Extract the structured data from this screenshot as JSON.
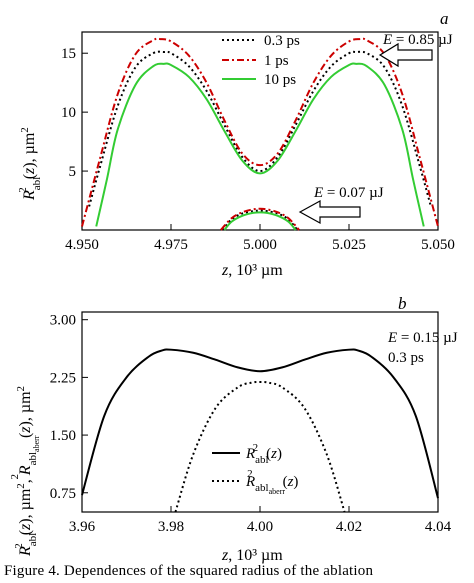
{
  "chart_data": [
    {
      "panel": "a",
      "type": "line",
      "xlabel_prefix": "z",
      "xlabel_units": "10³ µm",
      "ylabel_text": "R²abl(z), µm²",
      "xlim": [
        4.95,
        5.05
      ],
      "ylim": [
        0,
        16.8
      ],
      "x_ticks": [
        "4.950",
        "4.975",
        "5.000",
        "5.025",
        "5.050"
      ],
      "y_ticks": [
        "5",
        "10",
        "15"
      ],
      "series": [
        {
          "name": "0.3 ps",
          "color": "#000000",
          "style": "dotted",
          "x": [
            4.952,
            4.955,
            4.96,
            4.965,
            4.97,
            4.973,
            4.975,
            4.98,
            4.985,
            4.99,
            4.995,
            5.0,
            5.005,
            5.01,
            5.015,
            5.02,
            5.025,
            5.027,
            5.03,
            5.035,
            5.04,
            5.045,
            5.048
          ],
          "y": [
            2.0,
            5.3,
            10.5,
            13.8,
            15.0,
            15.1,
            15.0,
            13.9,
            11.8,
            8.9,
            6.2,
            5.0,
            6.2,
            8.9,
            11.8,
            13.9,
            15.0,
            15.1,
            15.0,
            13.8,
            10.5,
            5.3,
            2.0
          ]
        },
        {
          "name": "1 ps",
          "color": "#cc0000",
          "style": "dashdot",
          "x": [
            4.95,
            4.955,
            4.96,
            4.965,
            4.97,
            4.972,
            4.975,
            4.98,
            4.985,
            4.99,
            4.995,
            5.0,
            5.005,
            5.01,
            5.015,
            5.02,
            5.025,
            5.028,
            5.03,
            5.035,
            5.04,
            5.045,
            5.05
          ],
          "y": [
            0.3,
            6.0,
            11.5,
            14.9,
            16.1,
            16.2,
            16.0,
            14.8,
            12.5,
            9.3,
            6.5,
            5.5,
            6.5,
            9.3,
            12.5,
            14.8,
            16.0,
            16.2,
            16.1,
            14.9,
            11.5,
            6.0,
            0.3
          ]
        },
        {
          "name": "10 ps",
          "color": "#33cc33",
          "style": "solid",
          "x": [
            4.954,
            4.957,
            4.96,
            4.965,
            4.97,
            4.973,
            4.975,
            4.98,
            4.985,
            4.99,
            4.995,
            5.0,
            5.005,
            5.01,
            5.015,
            5.02,
            5.025,
            5.027,
            5.03,
            5.035,
            5.04,
            5.043,
            5.046
          ],
          "y": [
            0.3,
            4.3,
            8.5,
            12.3,
            13.9,
            14.1,
            14.0,
            13.0,
            11.1,
            8.4,
            5.9,
            4.8,
            5.9,
            8.4,
            11.1,
            13.0,
            14.0,
            14.1,
            13.9,
            12.3,
            8.5,
            4.3,
            0.3
          ]
        },
        {
          "name": "",
          "color": "#000000",
          "style": "dotted",
          "x": [
            4.9895,
            4.992,
            4.995,
            4.998,
            5.0,
            5.002,
            5.005,
            5.008,
            5.0105
          ],
          "y": [
            0.0,
            0.9,
            1.4,
            1.6,
            1.65,
            1.6,
            1.4,
            0.9,
            0.0
          ]
        },
        {
          "name": "",
          "color": "#cc0000",
          "style": "dashdot",
          "x": [
            4.989,
            4.992,
            4.995,
            4.998,
            5.0,
            5.002,
            5.005,
            5.008,
            5.011
          ],
          "y": [
            0.0,
            1.0,
            1.5,
            1.75,
            1.8,
            1.75,
            1.5,
            1.0,
            0.0
          ]
        },
        {
          "name": "",
          "color": "#33cc33",
          "style": "solid",
          "x": [
            4.99,
            4.992,
            4.995,
            4.998,
            5.0,
            5.002,
            5.005,
            5.008,
            5.01
          ],
          "y": [
            0.0,
            0.7,
            1.2,
            1.45,
            1.5,
            1.45,
            1.2,
            0.7,
            0.0
          ]
        }
      ],
      "annotations": [
        {
          "prefix": "E",
          "text": " = 0.85 µJ"
        },
        {
          "prefix": "E",
          "text": " = 0.07 µJ"
        }
      ],
      "grid": false,
      "legend": "top-center"
    },
    {
      "panel": "b",
      "type": "line",
      "xlabel_prefix": "z",
      "xlabel_units": "10³ µm",
      "ylabel_text": "R²abl(z), µm², R²abl_aberr(z), µm²",
      "xlim": [
        3.96,
        4.04
      ],
      "ylim": [
        0.5,
        3.1
      ],
      "x_ticks": [
        "3.96",
        "3.98",
        "4.00",
        "4.02",
        "4.04"
      ],
      "y_ticks": [
        "0.75",
        "1.50",
        "2.25",
        "3.00"
      ],
      "series": [
        {
          "name": "R²abl(z)",
          "color": "#000000",
          "style": "solid",
          "x": [
            3.96,
            3.965,
            3.97,
            3.975,
            3.978,
            3.98,
            3.985,
            3.99,
            3.995,
            4.0,
            4.005,
            4.01,
            4.015,
            4.02,
            4.022,
            4.025,
            4.03,
            4.035,
            4.04
          ],
          "y": [
            0.72,
            1.75,
            2.25,
            2.52,
            2.6,
            2.61,
            2.57,
            2.48,
            2.38,
            2.33,
            2.38,
            2.48,
            2.57,
            2.61,
            2.6,
            2.52,
            2.25,
            1.75,
            0.68
          ]
        },
        {
          "name": "R²abl_aberr(z)",
          "color": "#000000",
          "style": "dotted",
          "x": [
            3.981,
            3.985,
            3.99,
            3.995,
            3.998,
            4.0,
            4.002,
            4.005,
            4.01,
            4.015,
            4.019
          ],
          "y": [
            0.5,
            1.25,
            1.85,
            2.12,
            2.18,
            2.19,
            2.18,
            2.12,
            1.85,
            1.25,
            0.5
          ]
        }
      ],
      "annotations": [
        {
          "prefix": "E",
          "text": " = 0.15 µJ"
        },
        {
          "prefix": "",
          "text": "0.3 ps"
        }
      ],
      "grid": false,
      "legend": "bottom-center"
    }
  ],
  "footer": {
    "text": "Figure 4. Dependences of the squared radius of the ablation"
  }
}
